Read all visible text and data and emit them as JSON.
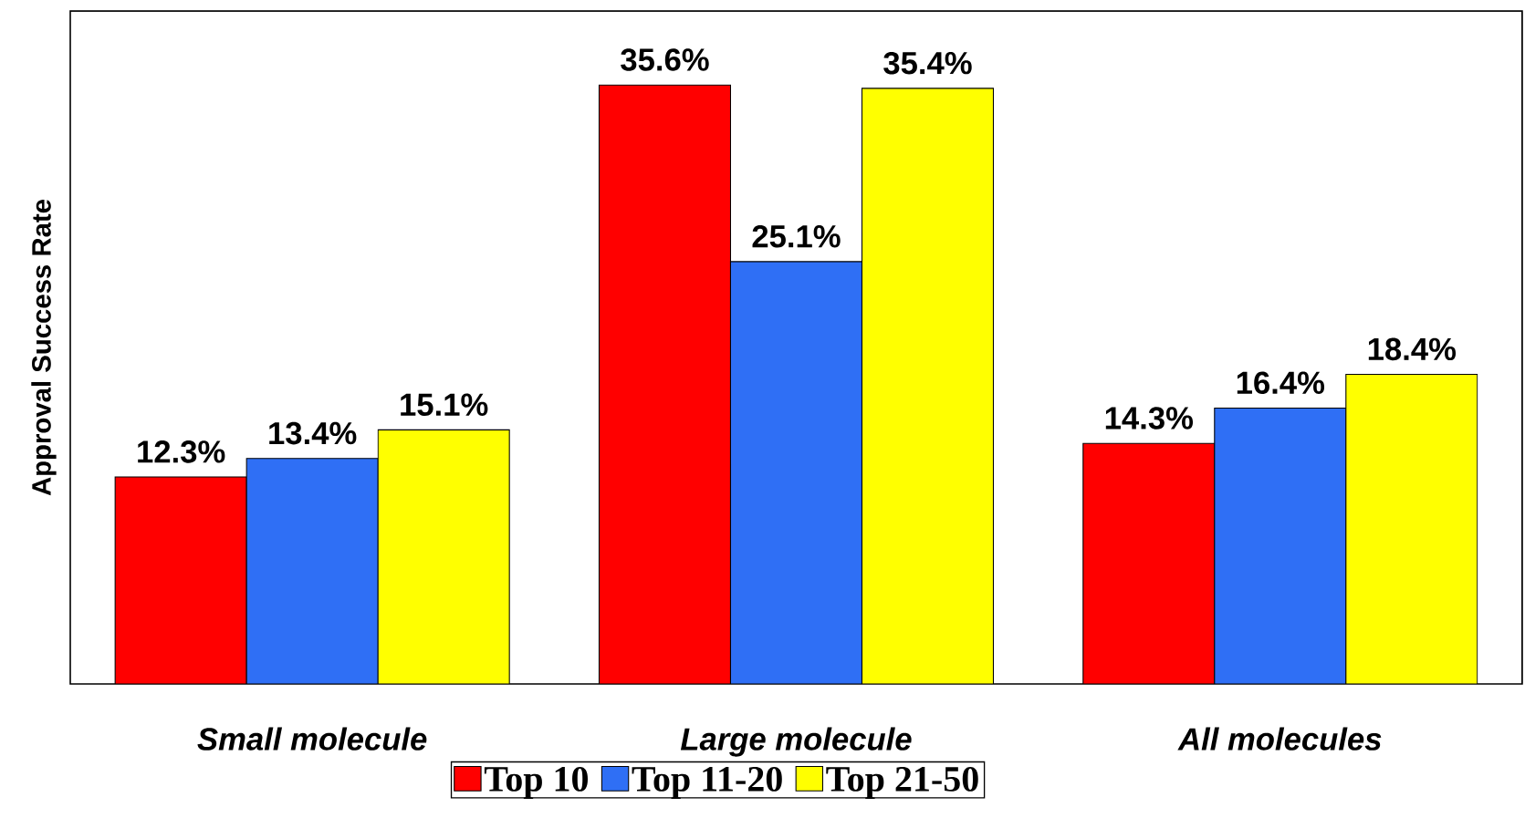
{
  "chart_data": {
    "type": "bar",
    "ylabel": "Approval Success Rate",
    "categories": [
      "*Small molecule*",
      "*Large molecule*",
      "*All molecules*"
    ],
    "series": [
      {
        "name": "Top 10",
        "color": "#ff0000",
        "values": [
          12.3,
          35.6,
          14.3
        ],
        "value_labels": [
          "12.3%",
          "35.6%",
          "14.3%"
        ]
      },
      {
        "name": "Top 11-20",
        "color": "#2f6ff5",
        "values": [
          13.4,
          25.1,
          16.4
        ],
        "value_labels": [
          "13.4%",
          "25.1%",
          "16.4%"
        ]
      },
      {
        "name": "Top 21-50",
        "color": "#ffff00",
        "values": [
          15.1,
          35.4,
          18.4
        ],
        "value_labels": [
          "15.1%",
          "35.4%",
          "18.4%"
        ]
      }
    ],
    "ylim": [
      0,
      40
    ],
    "tick_labels": "x",
    "legend": "bottom",
    "grid": false
  }
}
